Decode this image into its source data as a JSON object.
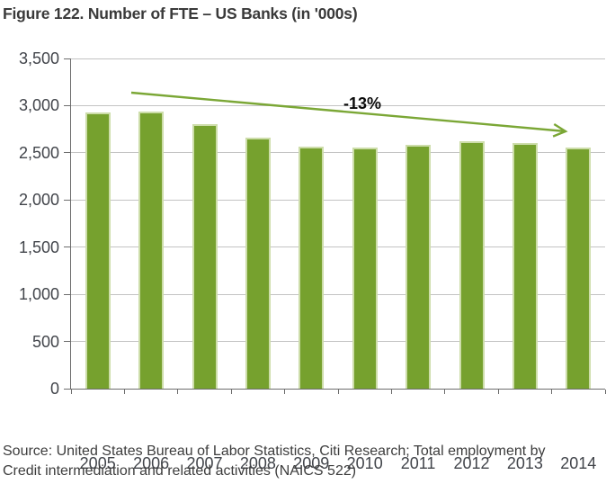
{
  "page": {
    "title": "Figure 122. Number of FTE – US Banks (in '000s)"
  },
  "source": {
    "lines": [
      "Source: United States Bureau of Labor Statistics, Citi Research; Total employment by",
      "Credit intermediation and related activities (NAICS 522)"
    ]
  },
  "chart_data": {
    "type": "bar",
    "title": "Figure 122. Number of FTE – US Banks (in '000s)",
    "unit": "thousands of FTE",
    "categories": [
      "2005",
      "2006",
      "2007",
      "2008",
      "2009",
      "2010",
      "2011",
      "2012",
      "2013",
      "2014"
    ],
    "values": [
      2925,
      2940,
      2800,
      2665,
      2570,
      2560,
      2580,
      2625,
      2600,
      2560
    ],
    "xlabel": "",
    "ylabel": "",
    "ylim": [
      0,
      3500
    ],
    "ytick_step": 500,
    "yticks": [
      0,
      500,
      1000,
      1500,
      2000,
      2500,
      3000,
      3500
    ],
    "ytick_labels": [
      "0",
      "500",
      "1,000",
      "1,500",
      "2,000",
      "2,500",
      "3,000",
      "3,500"
    ],
    "grid": true,
    "legend_position": "none",
    "annotation": {
      "label": "-13%",
      "shape": "arrow",
      "from_category": "2006",
      "to_category": "2014",
      "meaning": "decline from 2006 peak to 2014"
    },
    "colors": {
      "bar": "#76a12e",
      "bar_edge": "#cdddaa",
      "arrow": "#7ba736",
      "grid": "#c3c3c3",
      "axis": "#6d6d6d",
      "tick_text": "#41444a",
      "annotation_text": "#0b0b0b"
    }
  }
}
